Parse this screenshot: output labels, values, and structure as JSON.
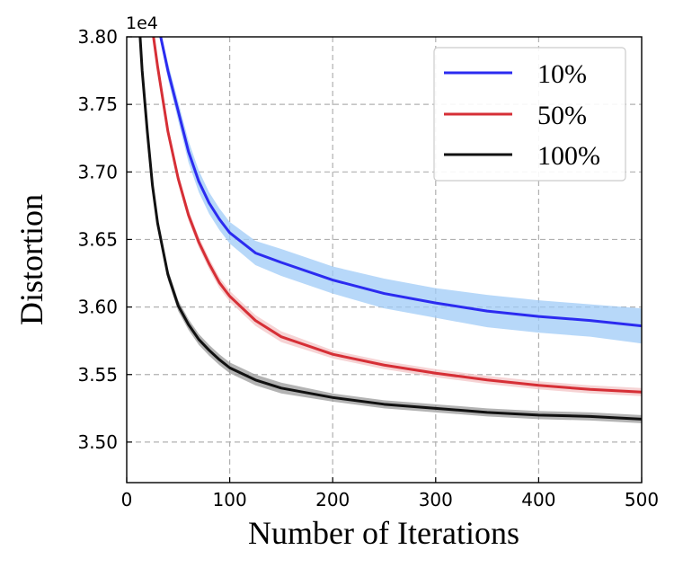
{
  "chart_data": {
    "type": "line",
    "xlabel": "Number of Iterations",
    "ylabel": "Distortion",
    "xlim": [
      0,
      500
    ],
    "ylim": [
      3.47,
      3.8
    ],
    "y_offset_label": "1e4",
    "x_ticks": [
      0,
      100,
      200,
      300,
      400,
      500
    ],
    "x_tick_labels": [
      "0",
      "100",
      "200",
      "300",
      "400",
      "500"
    ],
    "y_ticks": [
      3.5,
      3.55,
      3.6,
      3.65,
      3.7,
      3.75,
      3.8
    ],
    "y_tick_labels": [
      "3.50",
      "3.55",
      "3.60",
      "3.65",
      "3.70",
      "3.75",
      "3.80"
    ],
    "grid": true,
    "legend_position": "top-right",
    "series": [
      {
        "name": "10%",
        "color": "#2b2bf0",
        "band_color": "#9fcbf7",
        "x": [
          33,
          40,
          50,
          60,
          70,
          80,
          90,
          100,
          125,
          150,
          200,
          250,
          300,
          350,
          400,
          450,
          500
        ],
        "y": [
          3.8,
          3.775,
          3.745,
          3.715,
          3.693,
          3.677,
          3.665,
          3.655,
          3.64,
          3.633,
          3.62,
          3.61,
          3.603,
          3.597,
          3.593,
          3.59,
          3.586
        ],
        "band": [
          0.004,
          0.006,
          0.007,
          0.008,
          0.008,
          0.008,
          0.008,
          0.008,
          0.009,
          0.01,
          0.01,
          0.011,
          0.011,
          0.012,
          0.012,
          0.012,
          0.013
        ]
      },
      {
        "name": "50%",
        "color": "#d62f36",
        "band_color": "#f3c4c6",
        "x": [
          26,
          30,
          40,
          50,
          60,
          70,
          80,
          90,
          100,
          125,
          150,
          200,
          250,
          300,
          350,
          400,
          450,
          500
        ],
        "y": [
          3.8,
          3.778,
          3.73,
          3.695,
          3.668,
          3.648,
          3.632,
          3.618,
          3.608,
          3.59,
          3.578,
          3.565,
          3.557,
          3.551,
          3.546,
          3.542,
          3.539,
          3.537
        ],
        "band": [
          0.002,
          0.003,
          0.004,
          0.004,
          0.004,
          0.004,
          0.004,
          0.004,
          0.004,
          0.004,
          0.004,
          0.003,
          0.003,
          0.003,
          0.003,
          0.003,
          0.003,
          0.003
        ]
      },
      {
        "name": "100%",
        "color": "#111111",
        "band_color": "#9a9a9a",
        "x": [
          13,
          15,
          20,
          25,
          30,
          40,
          50,
          60,
          70,
          80,
          90,
          100,
          125,
          150,
          200,
          250,
          300,
          350,
          400,
          450,
          500
        ],
        "y": [
          3.8,
          3.775,
          3.73,
          3.69,
          3.662,
          3.624,
          3.601,
          3.587,
          3.576,
          3.568,
          3.561,
          3.555,
          3.546,
          3.54,
          3.533,
          3.528,
          3.525,
          3.522,
          3.52,
          3.519,
          3.517
        ],
        "band": [
          0.003,
          0.004,
          0.004,
          0.004,
          0.004,
          0.004,
          0.004,
          0.004,
          0.004,
          0.004,
          0.004,
          0.004,
          0.004,
          0.004,
          0.003,
          0.003,
          0.003,
          0.003,
          0.003,
          0.003,
          0.003
        ]
      }
    ]
  }
}
